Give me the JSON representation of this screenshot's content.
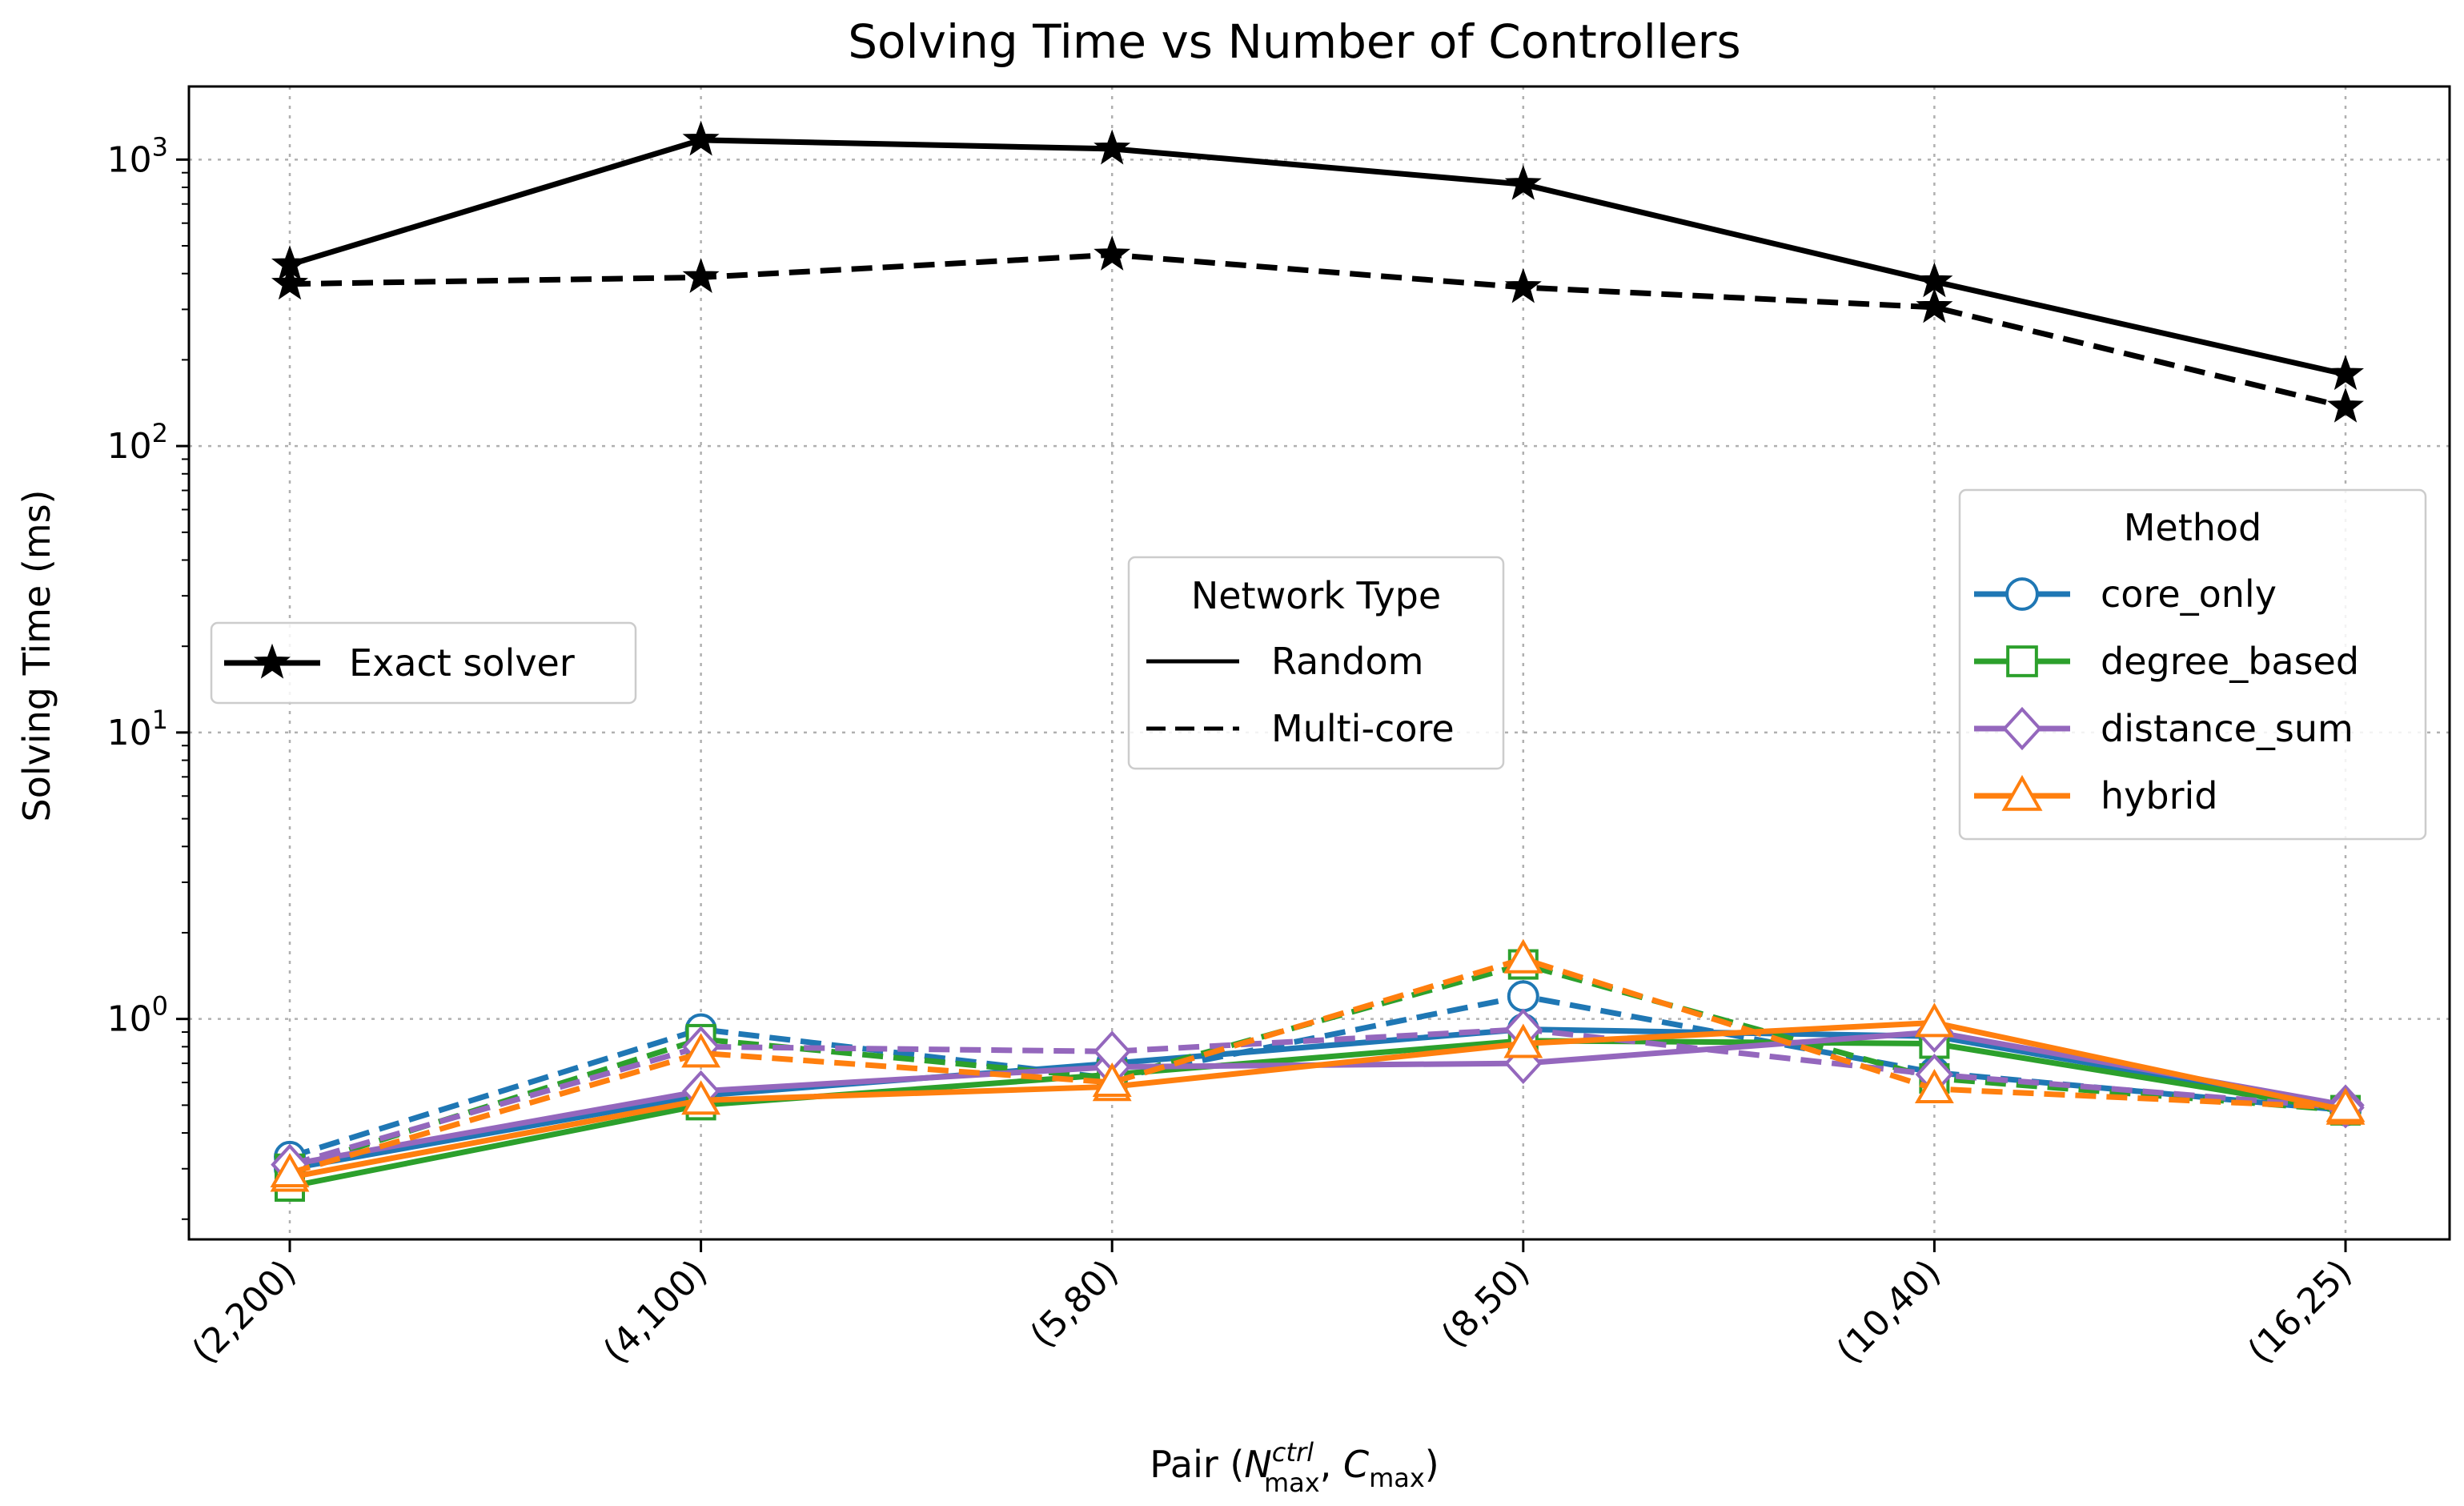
{
  "chart_data": {
    "type": "line",
    "title": "Solving Time vs Number of Controllers",
    "xlabel": "Pair (N^ctrl_max, C_max)",
    "xlabel_parts": {
      "prefix": "Pair (",
      "n": "N",
      "n_sup": "ctrl",
      "n_sub": "max",
      "sep": ", ",
      "c": "C",
      "c_sub": "max",
      "suffix": ")"
    },
    "ylabel": "Solving Time (ms)",
    "yscale": "log",
    "ylim": [
      0.17,
      1800
    ],
    "yticks": [
      {
        "value": 1,
        "base": "10",
        "exp": "0"
      },
      {
        "value": 10,
        "base": "10",
        "exp": "1"
      },
      {
        "value": 100,
        "base": "10",
        "exp": "2"
      },
      {
        "value": 1000,
        "base": "10",
        "exp": "3"
      }
    ],
    "categories": [
      "(2,200)",
      "(4,100)",
      "(5,80)",
      "(8,50)",
      "(10,40)",
      "(16,25)"
    ],
    "grid": true,
    "colors": {
      "core_only": "#1f77b4",
      "degree_based": "#2ca02c",
      "distance_sum": "#9467bd",
      "hybrid": "#ff7f0e",
      "exact": "#000000"
    },
    "series": [
      {
        "name": "core_only",
        "network": "Random",
        "marker": "circle",
        "values": [
          0.3,
          0.54,
          0.7,
          0.92,
          0.87,
          0.49
        ]
      },
      {
        "name": "core_only",
        "network": "Multi-core",
        "marker": "circle",
        "values": [
          0.33,
          0.92,
          0.62,
          1.2,
          0.65,
          0.48
        ]
      },
      {
        "name": "degree_based",
        "network": "Random",
        "marker": "square",
        "values": [
          0.26,
          0.5,
          0.64,
          0.84,
          0.82,
          0.48
        ]
      },
      {
        "name": "degree_based",
        "network": "Multi-core",
        "marker": "square",
        "values": [
          0.3,
          0.85,
          0.62,
          1.55,
          0.62,
          0.48
        ]
      },
      {
        "name": "distance_sum",
        "network": "Random",
        "marker": "diamond",
        "values": [
          0.31,
          0.56,
          0.68,
          0.7,
          0.9,
          0.5
        ]
      },
      {
        "name": "distance_sum",
        "network": "Multi-core",
        "marker": "diamond",
        "values": [
          0.31,
          0.8,
          0.77,
          0.92,
          0.64,
          0.49
        ]
      },
      {
        "name": "hybrid",
        "network": "Random",
        "marker": "triangle",
        "values": [
          0.28,
          0.52,
          0.58,
          0.82,
          0.97,
          0.48
        ]
      },
      {
        "name": "hybrid",
        "network": "Multi-core",
        "marker": "triangle",
        "values": [
          0.29,
          0.76,
          0.6,
          1.62,
          0.57,
          0.49
        ]
      },
      {
        "name": "Exact solver",
        "network": "Random",
        "marker": "star",
        "values": [
          430,
          1170,
          1090,
          820,
          375,
          178
        ]
      },
      {
        "name": "Exact solver",
        "network": "Multi-core",
        "marker": "star",
        "values": [
          368,
          388,
          465,
          358,
          305,
          137
        ]
      }
    ],
    "legends": [
      {
        "id": "exact",
        "title": "",
        "placement": "center-left",
        "entries": [
          {
            "label": "Exact solver",
            "key": "exact",
            "marker": "star",
            "style": "solid"
          }
        ]
      },
      {
        "id": "network",
        "title": "Network Type",
        "placement": "center",
        "entries": [
          {
            "label": "Random",
            "style": "solid"
          },
          {
            "label": "Multi-core",
            "style": "dashed"
          }
        ]
      },
      {
        "id": "method",
        "title": "Method",
        "placement": "center-right",
        "entries": [
          {
            "label": "core_only",
            "key": "core_only",
            "marker": "circle",
            "style": "solid"
          },
          {
            "label": "degree_based",
            "key": "degree_based",
            "marker": "square",
            "style": "solid"
          },
          {
            "label": "distance_sum",
            "key": "distance_sum",
            "marker": "diamond",
            "style": "solid"
          },
          {
            "label": "hybrid",
            "key": "hybrid",
            "marker": "triangle",
            "style": "solid"
          }
        ]
      }
    ]
  }
}
